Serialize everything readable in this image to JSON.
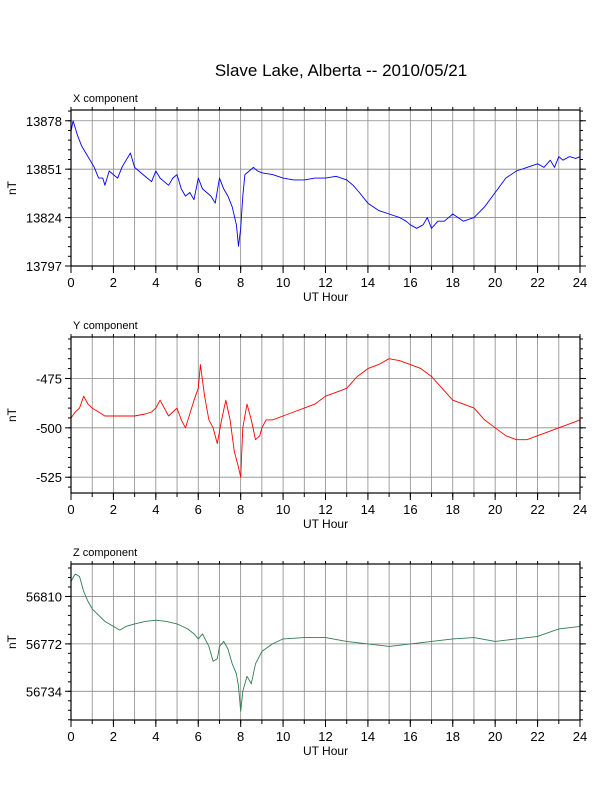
{
  "title": "Slave Lake, Alberta -- 2010/05/21",
  "chart_data": [
    {
      "type": "line",
      "panel_title": "X component",
      "xlabel": "UT Hour",
      "ylabel": "nT",
      "color": "#0000ff",
      "xlim": [
        0,
        24
      ],
      "ylim": [
        13797,
        13884
      ],
      "xticks": [
        0,
        2,
        4,
        6,
        8,
        10,
        12,
        14,
        16,
        18,
        20,
        22,
        24
      ],
      "yticks": [
        13797,
        13824,
        13851,
        13878
      ],
      "grid": true,
      "series": [
        {
          "x": [
            0,
            0.1,
            0.3,
            0.5,
            0.7,
            0.9,
            1.1,
            1.3,
            1.5,
            1.6,
            1.8,
            2.0,
            2.2,
            2.4,
            2.6,
            2.8,
            3.0,
            3.2,
            3.4,
            3.6,
            3.8,
            4.0,
            4.2,
            4.4,
            4.6,
            4.8,
            5.0,
            5.2,
            5.4,
            5.6,
            5.8,
            6.0,
            6.2,
            6.4,
            6.6,
            6.8,
            7.0,
            7.2,
            7.4,
            7.6,
            7.8,
            7.9,
            8.0,
            8.1,
            8.2,
            8.4,
            8.6,
            8.8,
            9.0,
            9.5,
            10,
            10.5,
            11,
            11.5,
            12,
            12.5,
            13,
            13.3,
            13.6,
            14,
            14.5,
            15,
            15.5,
            15.8,
            16,
            16.3,
            16.6,
            16.8,
            17,
            17.3,
            17.6,
            18,
            18.5,
            19,
            19.5,
            20,
            20.5,
            21,
            21.5,
            22,
            22.3,
            22.6,
            22.8,
            23.0,
            23.2,
            23.5,
            23.8,
            24
          ],
          "y": [
            13872,
            13878,
            13870,
            13864,
            13860,
            13856,
            13852,
            13846,
            13846,
            13842,
            13850,
            13848,
            13846,
            13852,
            13856,
            13860,
            13852,
            13850,
            13848,
            13846,
            13844,
            13850,
            13846,
            13844,
            13842,
            13846,
            13848,
            13840,
            13836,
            13838,
            13834,
            13846,
            13840,
            13838,
            13836,
            13832,
            13846,
            13840,
            13836,
            13830,
            13820,
            13808,
            13818,
            13836,
            13848,
            13850,
            13852,
            13850,
            13849,
            13848,
            13846,
            13845,
            13845,
            13846,
            13846,
            13847,
            13845,
            13842,
            13838,
            13832,
            13828,
            13826,
            13824,
            13822,
            13820,
            13818,
            13820,
            13824,
            13818,
            13822,
            13822,
            13826,
            13822,
            13824,
            13830,
            13838,
            13846,
            13850,
            13852,
            13854,
            13852,
            13856,
            13852,
            13858,
            13856,
            13858,
            13857,
            13858
          ]
        }
      ]
    },
    {
      "type": "line",
      "panel_title": "Y component",
      "xlabel": "UT Hour",
      "ylabel": "nT",
      "color": "#ff0000",
      "xlim": [
        0,
        24
      ],
      "ylim": [
        -533,
        -454
      ],
      "xticks": [
        0,
        2,
        4,
        6,
        8,
        10,
        12,
        14,
        16,
        18,
        20,
        22,
        24
      ],
      "yticks": [
        -525,
        -500,
        -475
      ],
      "grid": true,
      "series": [
        {
          "x": [
            0,
            0.2,
            0.4,
            0.6,
            0.8,
            1.0,
            1.3,
            1.6,
            2.0,
            2.5,
            3.0,
            3.5,
            3.8,
            4.0,
            4.2,
            4.4,
            4.6,
            4.8,
            5.0,
            5.2,
            5.4,
            5.6,
            5.8,
            6.0,
            6.1,
            6.3,
            6.5,
            6.7,
            6.9,
            7.1,
            7.3,
            7.5,
            7.7,
            7.8,
            7.9,
            8.0,
            8.1,
            8.3,
            8.5,
            8.7,
            8.9,
            9.0,
            9.2,
            9.5,
            10,
            10.5,
            11,
            11.5,
            12,
            12.5,
            13,
            13.5,
            14,
            14.5,
            15,
            15.5,
            16,
            16.5,
            17,
            17.5,
            18,
            18.5,
            19,
            19.5,
            20,
            20.5,
            21,
            21.5,
            22,
            22.5,
            23,
            23.5,
            24
          ],
          "y": [
            -495,
            -492,
            -490,
            -484,
            -488,
            -490,
            -492,
            -494,
            -494,
            -494,
            -494,
            -493,
            -492,
            -490,
            -486,
            -490,
            -494,
            -492,
            -490,
            -496,
            -500,
            -493,
            -486,
            -480,
            -468,
            -484,
            -496,
            -500,
            -508,
            -496,
            -486,
            -496,
            -512,
            -516,
            -520,
            -525,
            -500,
            -488,
            -496,
            -506,
            -504,
            -500,
            -496,
            -496,
            -494,
            -492,
            -490,
            -488,
            -484,
            -482,
            -480,
            -474,
            -470,
            -468,
            -465,
            -466,
            -468,
            -470,
            -474,
            -480,
            -486,
            -488,
            -490,
            -496,
            -500,
            -504,
            -506,
            -506,
            -504,
            -502,
            -500,
            -498,
            -496
          ]
        }
      ]
    },
    {
      "type": "line",
      "panel_title": "Z component",
      "xlabel": "UT Hour",
      "ylabel": "nT",
      "color": "#2e7d4f",
      "xlim": [
        0,
        24
      ],
      "ylim": [
        56711,
        56836
      ],
      "xticks": [
        0,
        2,
        4,
        6,
        8,
        10,
        12,
        14,
        16,
        18,
        20,
        22,
        24
      ],
      "yticks": [
        56734,
        56772,
        56810
      ],
      "grid": true,
      "series": [
        {
          "x": [
            0,
            0.2,
            0.4,
            0.6,
            0.8,
            1.0,
            1.3,
            1.6,
            2.0,
            2.3,
            2.6,
            3.0,
            3.5,
            4.0,
            4.5,
            5.0,
            5.5,
            5.8,
            6.0,
            6.2,
            6.5,
            6.7,
            6.9,
            7.0,
            7.2,
            7.4,
            7.6,
            7.8,
            7.9,
            8.0,
            8.1,
            8.3,
            8.5,
            8.7,
            9.0,
            9.5,
            10,
            11,
            12,
            13,
            14,
            15,
            16,
            17,
            18,
            19,
            20,
            21,
            22,
            23,
            24
          ],
          "y": [
            56822,
            56828,
            56826,
            56814,
            56806,
            56800,
            56795,
            56790,
            56786,
            56783,
            56786,
            56788,
            56790,
            56791,
            56790,
            56788,
            56784,
            56780,
            56776,
            56780,
            56770,
            56758,
            56760,
            56770,
            56774,
            56768,
            56756,
            56748,
            56738,
            56718,
            56734,
            56746,
            56740,
            56756,
            56766,
            56772,
            56776,
            56777,
            56777,
            56774,
            56772,
            56770,
            56772,
            56774,
            56776,
            56777,
            56774,
            56776,
            56778,
            56784,
            56786
          ]
        }
      ]
    }
  ]
}
